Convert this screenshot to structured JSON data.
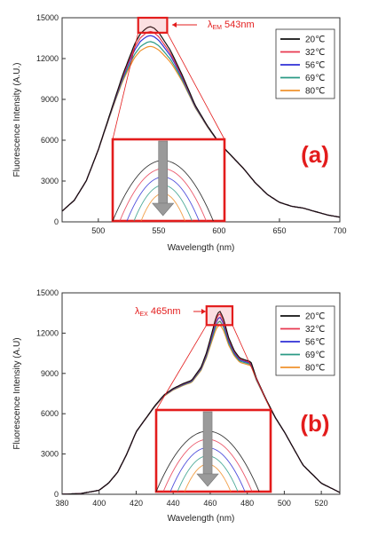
{
  "chart_data": [
    {
      "type": "line",
      "panel_label": "(a)",
      "xlabel": "Wavelength (nm)",
      "ylabel": "Fluorescence Intensity (A.U.)",
      "xlim": [
        470,
        700
      ],
      "ylim": [
        0,
        15000
      ],
      "xticks": [
        500,
        550,
        600,
        650,
        700
      ],
      "yticks": [
        0,
        3000,
        6000,
        9000,
        12000,
        15000
      ],
      "legend_position": "top-right",
      "annotation": {
        "prefix": "λ",
        "sub": "EM",
        "value": "543nm"
      },
      "annotation_color": "#e31c1c",
      "inset": "zoomed view of peak region, arrow showing intensity decrease",
      "series": [
        {
          "name": "20℃",
          "color": "#111111",
          "peak": 14350
        },
        {
          "name": "32℃",
          "color": "#e8384f",
          "peak": 14000
        },
        {
          "name": "56℃",
          "color": "#2f2fd6",
          "peak": 13700
        },
        {
          "name": "69℃",
          "color": "#2a9a85",
          "peak": 13250
        },
        {
          "name": "80℃",
          "color": "#f0922e",
          "peak": 12900
        }
      ],
      "x": [
        470,
        480,
        490,
        500,
        510,
        520,
        530,
        535,
        540,
        543,
        546,
        550,
        560,
        570,
        580,
        590,
        600,
        610,
        620,
        630,
        640,
        650,
        660,
        670,
        680,
        690,
        700
      ],
      "base_profile": [
        0.055,
        0.11,
        0.21,
        0.37,
        0.56,
        0.75,
        0.91,
        0.965,
        0.993,
        1.0,
        0.993,
        0.97,
        0.875,
        0.745,
        0.6,
        0.495,
        0.405,
        0.34,
        0.275,
        0.2,
        0.14,
        0.1,
        0.08,
        0.07,
        0.052,
        0.035,
        0.024
      ]
    },
    {
      "type": "line",
      "panel_label": "(b)",
      "xlabel": "Wavelength (nm)",
      "ylabel": "Fluorescence Intensity (A.U)",
      "xlim": [
        380,
        530
      ],
      "ylim": [
        0,
        15000
      ],
      "xticks": [
        380,
        400,
        420,
        440,
        460,
        480,
        500,
        520
      ],
      "yticks": [
        0,
        3000,
        6000,
        9000,
        12000,
        15000
      ],
      "legend_position": "top-right",
      "annotation": {
        "prefix": "λ",
        "sub": "EX",
        "value": "465nm"
      },
      "annotation_color": "#e31c1c",
      "inset": "zoomed view of peak region, arrow showing intensity decrease",
      "series": [
        {
          "name": "20℃",
          "color": "#111111",
          "peak": 13700
        },
        {
          "name": "32℃",
          "color": "#e8384f",
          "peak": 13500
        },
        {
          "name": "56℃",
          "color": "#2f2fd6",
          "peak": 13250
        },
        {
          "name": "69℃",
          "color": "#2a9a85",
          "peak": 12950
        },
        {
          "name": "80℃",
          "color": "#f0922e",
          "peak": 12650
        }
      ],
      "x": [
        380,
        390,
        400,
        405,
        410,
        415,
        420,
        425,
        430,
        435,
        440,
        445,
        450,
        455,
        458,
        461,
        463,
        465,
        467,
        470,
        473,
        476,
        479,
        482,
        485,
        490,
        495,
        500,
        505,
        510,
        520,
        530
      ],
      "base_profile": [
        0.0,
        0.004,
        0.022,
        0.06,
        0.12,
        0.22,
        0.34,
        0.41,
        0.48,
        0.54,
        0.575,
        0.6,
        0.62,
        0.69,
        0.77,
        0.88,
        0.96,
        1.0,
        0.96,
        0.85,
        0.78,
        0.74,
        0.73,
        0.72,
        0.63,
        0.52,
        0.42,
        0.34,
        0.25,
        0.16,
        0.06,
        0.01
      ]
    }
  ]
}
